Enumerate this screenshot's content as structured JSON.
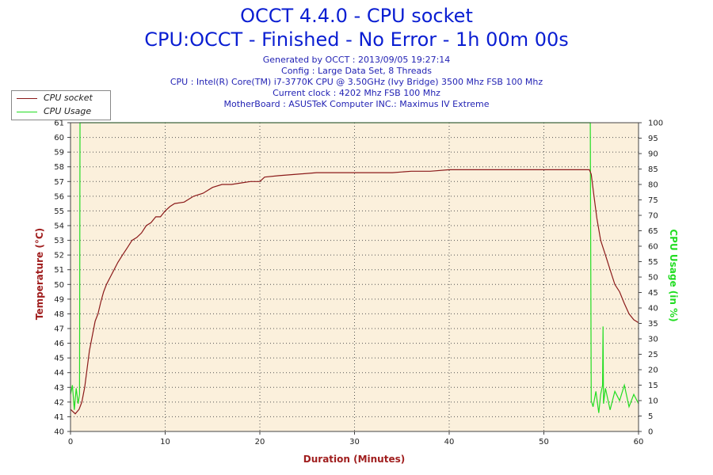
{
  "header": {
    "title": "OCCT 4.4.0 - CPU socket",
    "subtitle": "CPU:OCCT - Finished - No Error - 1h 00m 00s",
    "info": [
      "Generated by OCCT : 2013/09/05 19:27:14",
      "Config : Large Data Set, 8 Threads",
      "CPU : Intel(R) Core(TM) i7-3770K CPU @ 3.50GHz (Ivy Bridge) 3500 Mhz FSB 100 Mhz",
      "Current clock : 4202 Mhz FSB 100 Mhz",
      "MotherBoard : ASUSTeK Computer INC.: Maximus IV Extreme"
    ]
  },
  "colors": {
    "temperature": "#8b1a1a",
    "usage": "#22dd22",
    "plot_background": "#fbf0dc",
    "axis_label": "#a01e1e",
    "usage_label": "#22dd22"
  },
  "chart_data": {
    "type": "line",
    "xlabel": "Duration (Minutes)",
    "ylabel": "Temperature (°C)",
    "y2label": "CPU Usage (in %)",
    "xlim": [
      0,
      60
    ],
    "ylim": [
      40,
      61
    ],
    "y2lim": [
      0,
      100
    ],
    "grid": true,
    "legend_position": "top-left",
    "x_ticks": [
      0,
      10,
      20,
      30,
      40,
      50,
      60
    ],
    "y_ticks": [
      40,
      41,
      42,
      43,
      44,
      45,
      46,
      47,
      48,
      49,
      50,
      51,
      52,
      53,
      54,
      55,
      56,
      57,
      58,
      59,
      60,
      61
    ],
    "y2_ticks": [
      0,
      5,
      10,
      15,
      20,
      25,
      30,
      35,
      40,
      45,
      50,
      55,
      60,
      65,
      70,
      75,
      80,
      85,
      90,
      95,
      100
    ],
    "series": [
      {
        "name": "CPU socket",
        "axis": "left",
        "x": [
          0,
          0.5,
          0.9,
          1.2,
          1.5,
          1.8,
          2.0,
          2.3,
          2.6,
          2.9,
          3.2,
          3.5,
          3.8,
          4.2,
          4.6,
          5.0,
          5.5,
          6.0,
          6.5,
          7.0,
          7.5,
          8.0,
          8.5,
          9.0,
          9.5,
          10.0,
          10.5,
          11.0,
          12.0,
          13.0,
          14.0,
          15.0,
          16.0,
          17.0,
          18.0,
          19.0,
          20.0,
          20.5,
          22.0,
          24.0,
          26.0,
          28.0,
          30.0,
          32.0,
          34.0,
          36.0,
          38.0,
          40.0,
          42.0,
          44.0,
          46.0,
          48.0,
          50.0,
          52.0,
          54.0,
          54.8,
          55.0,
          55.3,
          55.6,
          56.0,
          56.5,
          57.0,
          57.5,
          58.0,
          58.5,
          59.0,
          59.5,
          60.0
        ],
        "y": [
          41.5,
          41.2,
          41.5,
          42.0,
          43.0,
          44.5,
          45.5,
          46.5,
          47.5,
          48.0,
          48.8,
          49.5,
          50.0,
          50.5,
          51.0,
          51.5,
          52.0,
          52.5,
          53.0,
          53.2,
          53.5,
          54.0,
          54.2,
          54.6,
          54.6,
          55.0,
          55.3,
          55.5,
          55.6,
          56.0,
          56.2,
          56.6,
          56.8,
          56.8,
          56.9,
          57.0,
          57.0,
          57.3,
          57.4,
          57.5,
          57.6,
          57.6,
          57.6,
          57.6,
          57.6,
          57.7,
          57.7,
          57.8,
          57.8,
          57.8,
          57.8,
          57.8,
          57.8,
          57.8,
          57.8,
          57.8,
          57.5,
          56.0,
          54.5,
          53.0,
          52.0,
          51.0,
          50.0,
          49.5,
          48.7,
          48.0,
          47.6,
          47.4
        ]
      },
      {
        "name": "CPU Usage",
        "axis": "right",
        "x": [
          0,
          0.2,
          0.4,
          0.6,
          0.8,
          0.95,
          1.0,
          54.9,
          55.0,
          55.2,
          55.5,
          55.8,
          56.0,
          56.2,
          56.25,
          56.3,
          56.5,
          57.0,
          57.5,
          58.0,
          58.5,
          59.0,
          59.5,
          60.0
        ],
        "y": [
          12,
          15,
          7,
          14,
          9,
          12,
          100,
          100,
          10,
          8,
          13,
          6,
          12,
          15,
          34,
          9,
          14,
          7,
          13,
          10,
          15,
          8,
          12,
          9
        ]
      }
    ]
  }
}
